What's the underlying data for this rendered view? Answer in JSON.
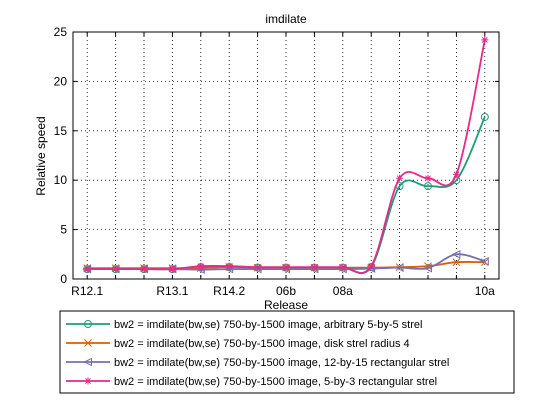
{
  "chart_data": {
    "type": "line",
    "title": "imdilate",
    "xlabel": "Release",
    "ylabel": "Relative speed",
    "ylim": [
      0,
      25
    ],
    "yticks": [
      0,
      5,
      10,
      15,
      20,
      25
    ],
    "xlim": [
      0.5,
      15.5
    ],
    "xtick_positions": [
      1,
      4,
      6,
      8,
      10,
      15
    ],
    "xtick_labels": [
      "R12.1",
      "R13.1",
      "R14.2",
      "06b",
      "08a",
      "10a"
    ],
    "grid": true,
    "legend_position": "bottom-outside",
    "x": [
      1,
      2,
      3,
      4,
      5,
      6,
      7,
      8,
      9,
      10,
      11,
      12,
      13,
      14,
      15
    ],
    "series": [
      {
        "name": "bw2 = imdilate(bw,se)  750-by-1500 image, arbitrary 5-by-5 strel",
        "color": "#1b9e77",
        "marker": "circle",
        "values": [
          1.0,
          1.0,
          1.0,
          1.0,
          1.2,
          1.2,
          1.15,
          1.15,
          1.15,
          1.15,
          1.2,
          9.4,
          9.4,
          10.0,
          16.4
        ]
      },
      {
        "name": "bw2 = imdilate(bw,se)  750-by-1500 image, disk strel radius 4",
        "color": "#d95f02",
        "marker": "x",
        "values": [
          1.1,
          1.1,
          1.1,
          1.1,
          1.1,
          1.2,
          1.15,
          1.15,
          1.15,
          1.15,
          1.15,
          1.2,
          1.3,
          1.7,
          1.7
        ]
      },
      {
        "name": "bw2 = imdilate(bw,se)  750-by-1500 image, 12-by-15 rectangular strel",
        "color": "#7570b3",
        "marker": "triangle-left",
        "values": [
          1.0,
          1.0,
          1.0,
          1.0,
          0.95,
          1.0,
          1.0,
          1.0,
          1.0,
          1.0,
          1.05,
          1.15,
          1.1,
          2.5,
          1.8
        ]
      },
      {
        "name": "bw2 = imdilate(bw,se)  750-by-1500 image, 5-by-3 rectangular strel",
        "color": "#e7298a",
        "marker": "star",
        "values": [
          1.0,
          1.0,
          1.0,
          1.0,
          1.3,
          1.3,
          1.2,
          1.2,
          1.2,
          1.2,
          1.3,
          10.2,
          10.2,
          10.6,
          24.2
        ]
      }
    ]
  }
}
